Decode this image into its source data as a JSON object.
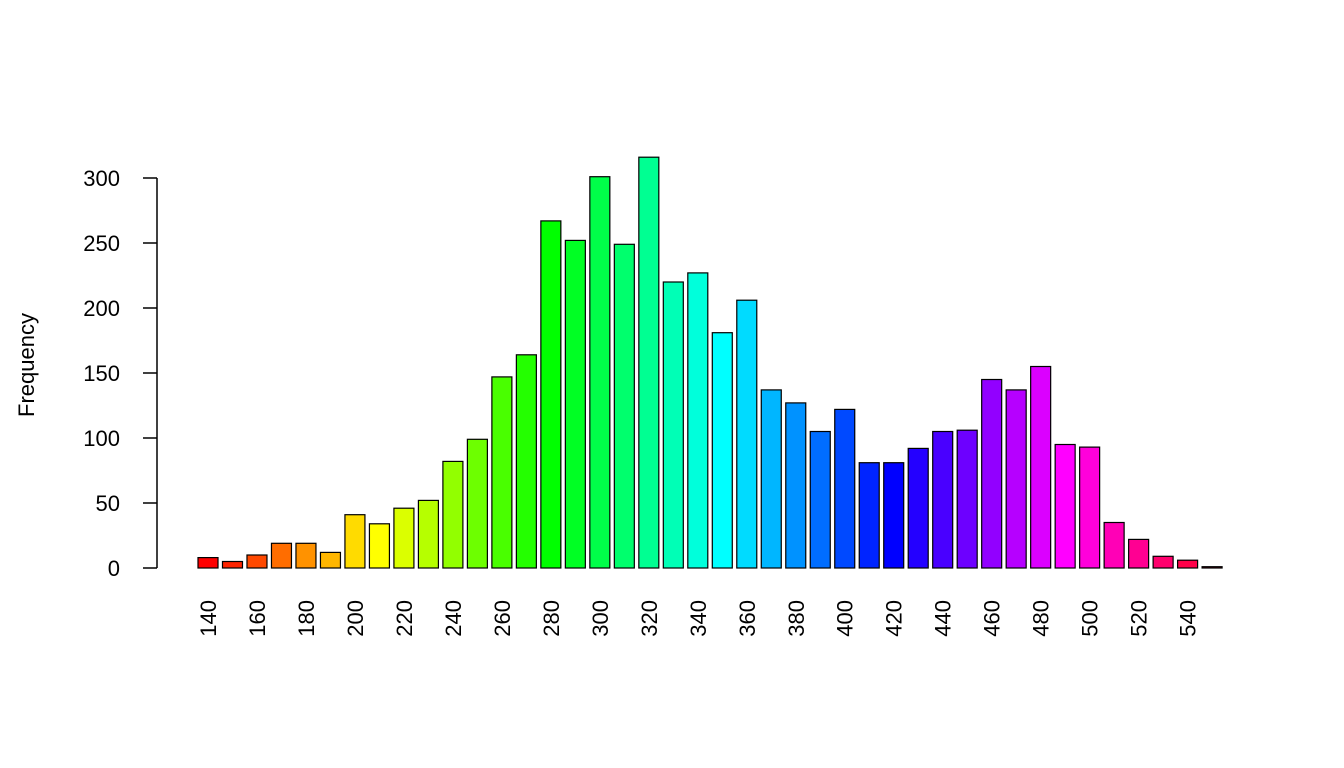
{
  "chart_data": {
    "type": "bar",
    "y_label": "Frequency",
    "categories": [
      "140",
      null,
      "160",
      null,
      "180",
      null,
      "200",
      null,
      "220",
      null,
      "240",
      null,
      "260",
      null,
      "280",
      null,
      "300",
      null,
      "320",
      null,
      "340",
      null,
      "360",
      null,
      "380",
      null,
      "400",
      null,
      "420",
      null,
      "440",
      null,
      "460",
      null,
      "480",
      null,
      "500",
      null,
      "520",
      null,
      "540",
      null
    ],
    "values": [
      8,
      5,
      10,
      19,
      19,
      12,
      41,
      34,
      46,
      52,
      82,
      99,
      147,
      164,
      267,
      252,
      301,
      249,
      316,
      220,
      227,
      181,
      206,
      137,
      127,
      105,
      122,
      81,
      81,
      92,
      105,
      106,
      145,
      137,
      155,
      95,
      93,
      35,
      22,
      9,
      6,
      1
    ],
    "palette": "rainbow",
    "ylim": [
      0,
      300
    ],
    "yticks": [
      0,
      50,
      100,
      150,
      200,
      250,
      300
    ],
    "grid": false
  }
}
